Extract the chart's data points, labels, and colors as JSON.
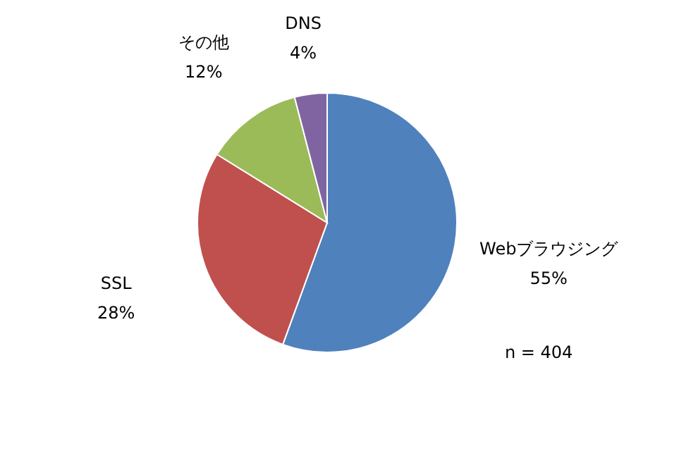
{
  "chart_data": {
    "type": "pie",
    "categories": [
      "Webブラウジング",
      "SSL",
      "その他",
      "DNS"
    ],
    "values": [
      55,
      28,
      12,
      4
    ],
    "value_labels": [
      "55%",
      "28%",
      "12%",
      "4%"
    ],
    "colors": [
      "#4f81bd",
      "#c0504d",
      "#9bbb59",
      "#8064a2"
    ],
    "annotations": [
      {
        "text": "n = 404"
      }
    ]
  }
}
